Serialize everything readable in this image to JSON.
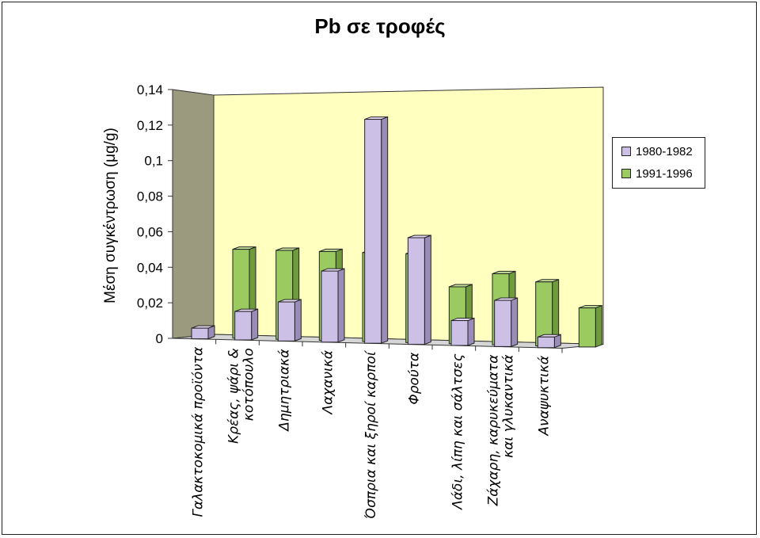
{
  "chart_data": {
    "type": "bar",
    "title": "Pb σε τροφές",
    "ylabel": "Μέση συγκέντρωση (μg/g)",
    "ylim": [
      0,
      0.14
    ],
    "yticks": [
      "0",
      "0,02",
      "0,04",
      "0,06",
      "0,08",
      "0,1",
      "0,12",
      "0,14"
    ],
    "categories": [
      [
        "Γαλακτοκομικά προϊόντα"
      ],
      [
        "Κρέας, ψάρι &",
        "κοτόπουλο"
      ],
      [
        "Δημητριακά"
      ],
      [
        "Λαχανικά"
      ],
      [
        "Όσπρια και ξηροί καρποί"
      ],
      [
        "Φρούτα"
      ],
      [
        "Λάδι, λίπη και σάλτσες"
      ],
      [
        "Ζάχαρη, καρυκεύματα",
        "και γλυκαντικά"
      ],
      [
        "Αναψυκτικά"
      ]
    ],
    "series": [
      {
        "name": "1980-1982",
        "color": "#ccc0e6",
        "side": "#9a8cb8",
        "top": "#e6dcf5",
        "values": [
          0.006,
          0.016,
          0.022,
          0.04,
          0.126,
          0.06,
          0.014,
          0.026,
          0.006
        ]
      },
      {
        "name": "1991-1996",
        "color": "#9bcb60",
        "side": "#6f9c3a",
        "top": "#c6e49a",
        "values": [
          0.05,
          0.05,
          0.05,
          0.05,
          0.05,
          0.032,
          0.04,
          0.036,
          0.022
        ]
      }
    ],
    "legend_position": "right",
    "grid": false
  }
}
